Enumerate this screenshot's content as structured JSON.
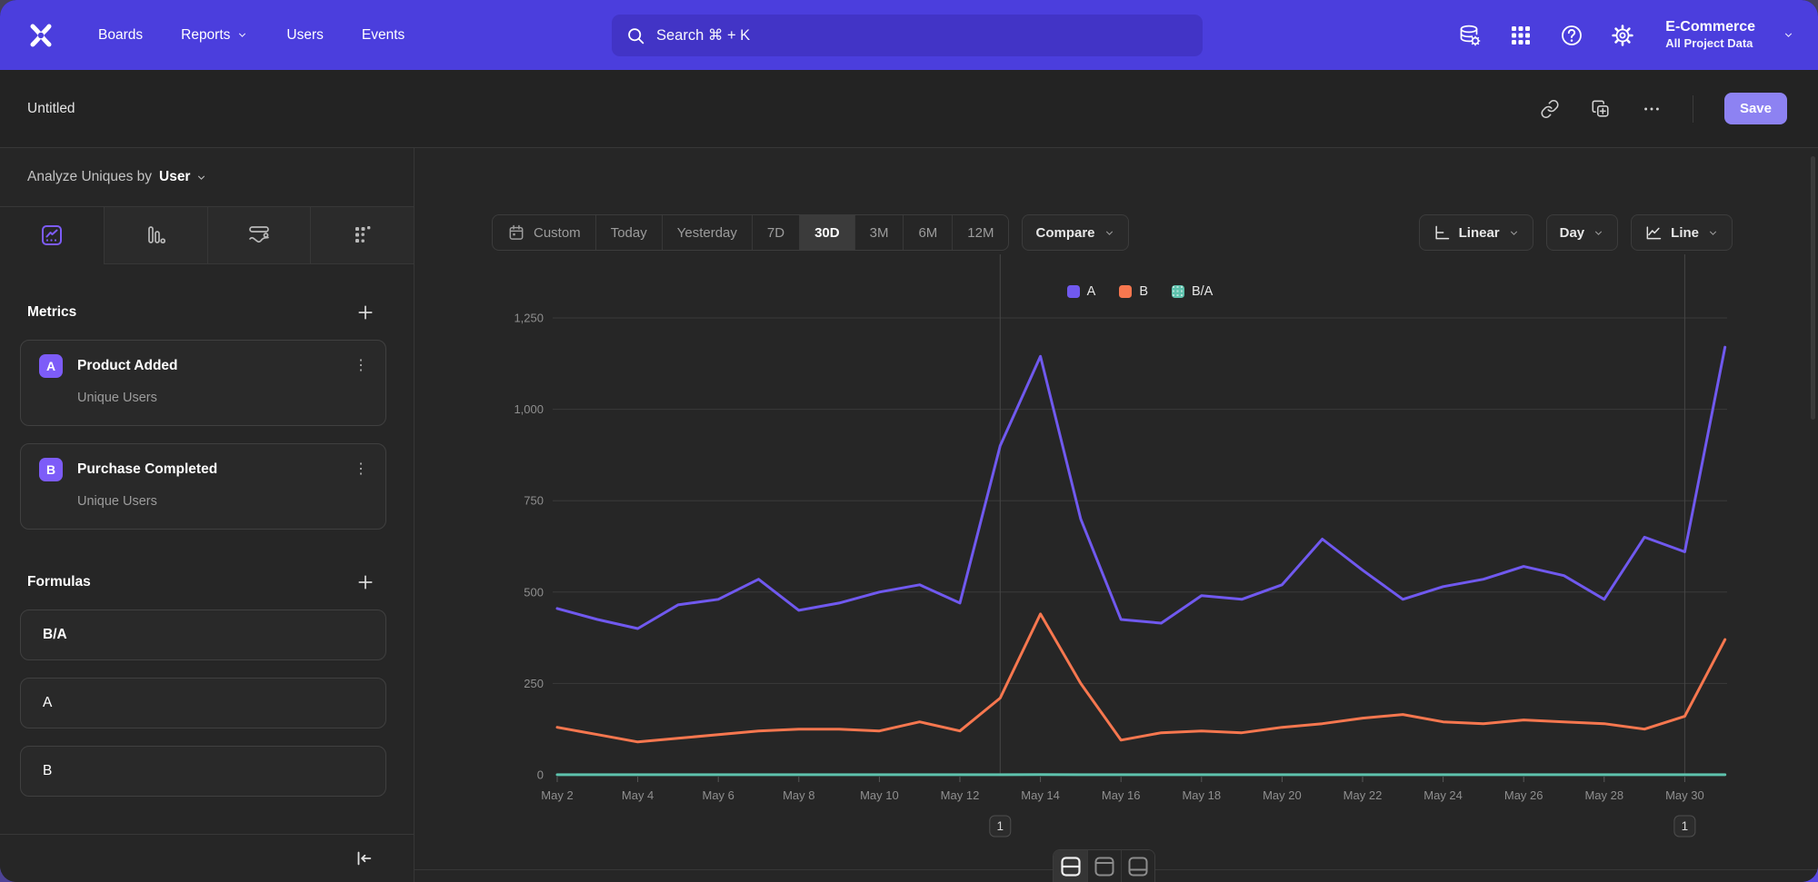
{
  "nav": {
    "logo": "mixpanel-logo",
    "items": [
      {
        "label": "Boards",
        "dropdown": false
      },
      {
        "label": "Reports",
        "dropdown": true
      },
      {
        "label": "Users",
        "dropdown": false
      },
      {
        "label": "Events",
        "dropdown": false
      }
    ],
    "search": {
      "placeholder": "Search  ⌘ + K"
    },
    "project": {
      "name": "E-Commerce",
      "scope": "All Project Data"
    }
  },
  "header": {
    "title": "Untitled",
    "save_label": "Save"
  },
  "sidebar": {
    "analyze_prefix": "Analyze Uniques by",
    "analyze_value": "User",
    "chart_tabs": [
      "insights",
      "bar",
      "flows",
      "retention"
    ],
    "selected_tab": "insights",
    "metrics": {
      "title": "Metrics",
      "items": [
        {
          "badge": "A",
          "name": "Product Added",
          "measure": "Unique Users"
        },
        {
          "badge": "B",
          "name": "Purchase Completed",
          "measure": "Unique Users"
        }
      ]
    },
    "formulas": {
      "title": "Formulas",
      "items": [
        {
          "label": "B/A",
          "bold": true
        },
        {
          "label": "A",
          "bold": false
        },
        {
          "label": "B",
          "bold": false
        }
      ]
    }
  },
  "toolbar": {
    "ranges": [
      "Custom",
      "Today",
      "Yesterday",
      "7D",
      "30D",
      "3M",
      "6M",
      "12M"
    ],
    "selected_range": "30D",
    "compare_label": "Compare",
    "scale_label": "Linear",
    "interval_label": "Day",
    "chart_type_label": "Line"
  },
  "chart_data": {
    "type": "line",
    "x": [
      "May 2",
      "May 3",
      "May 4",
      "May 5",
      "May 6",
      "May 7",
      "May 8",
      "May 9",
      "May 10",
      "May 11",
      "May 12",
      "May 13",
      "May 14",
      "May 15",
      "May 16",
      "May 17",
      "May 18",
      "May 19",
      "May 20",
      "May 21",
      "May 22",
      "May 23",
      "May 24",
      "May 25",
      "May 26",
      "May 27",
      "May 28",
      "May 29",
      "May 30",
      "May 31"
    ],
    "x_tick_every": 2,
    "yticks": [
      0,
      250,
      500,
      750,
      1000,
      1250
    ],
    "ylim": [
      0,
      1250
    ],
    "grid": true,
    "legend_position": "top-center",
    "series": [
      {
        "name": "A",
        "color": "#7059ef",
        "values": [
          455,
          425,
          400,
          465,
          480,
          535,
          450,
          470,
          500,
          520,
          470,
          900,
          1145,
          700,
          425,
          415,
          490,
          480,
          520,
          645,
          560,
          480,
          515,
          535,
          570,
          545,
          480,
          650,
          610,
          1170
        ]
      },
      {
        "name": "B",
        "color": "#f7774f",
        "values": [
          130,
          110,
          90,
          100,
          110,
          120,
          125,
          125,
          120,
          145,
          120,
          210,
          440,
          250,
          95,
          115,
          120,
          115,
          130,
          140,
          155,
          165,
          145,
          140,
          150,
          145,
          140,
          125,
          160,
          370
        ]
      },
      {
        "name": "B/A",
        "color": "#5ec2ad",
        "values": [
          0.29,
          0.26,
          0.23,
          0.22,
          0.23,
          0.22,
          0.28,
          0.27,
          0.24,
          0.28,
          0.26,
          0.23,
          0.38,
          0.36,
          0.22,
          0.28,
          0.24,
          0.24,
          0.25,
          0.22,
          0.28,
          0.34,
          0.28,
          0.26,
          0.26,
          0.27,
          0.29,
          0.19,
          0.26,
          0.32
        ]
      }
    ],
    "annotations": [
      {
        "x_index": 11,
        "x_label": "May 13",
        "label": "1"
      },
      {
        "x_index": 28,
        "x_label": "May 30",
        "label": "1"
      }
    ]
  },
  "footer_toolbar": {
    "layouts": [
      "chart-and-table",
      "chart-with-header",
      "table-only"
    ],
    "selected": "chart-and-table"
  },
  "colors": {
    "nav_bg": "#4b3edd",
    "accent_purple": "#7d5cf8",
    "save_bg": "#8d82f2",
    "series_a": "#7059ef",
    "series_b": "#f7774f",
    "series_ba": "#5ec2ad"
  }
}
